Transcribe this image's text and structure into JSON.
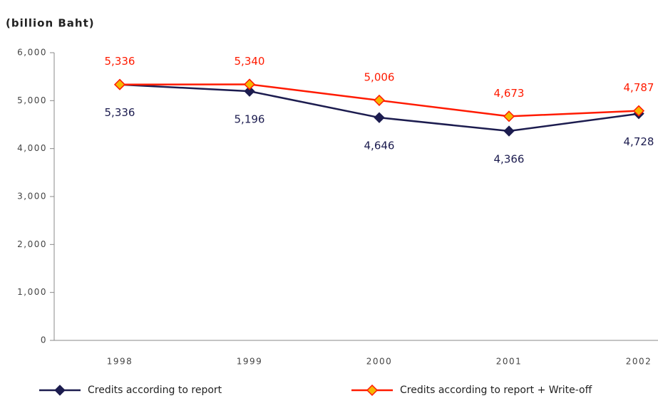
{
  "chart_data": {
    "type": "line",
    "ylabel": "(billion Baht)",
    "categories": [
      "1998",
      "1999",
      "2000",
      "2001",
      "2002"
    ],
    "series": [
      {
        "name": "Credits according to report",
        "color": "#1c1c4f",
        "marker_color": "#1c1c4f",
        "values": [
          5336,
          5196,
          4646,
          4366,
          4728
        ],
        "value_labels": [
          "5,336",
          "5,196",
          "4,646",
          "4,366",
          "4,728"
        ]
      },
      {
        "name": "Credits according to report + Write-off",
        "color": "#ff1a00",
        "marker_color": "#f5b800",
        "values": [
          5336,
          5340,
          5006,
          4673,
          4787
        ],
        "value_labels": [
          "5,336",
          "5,340",
          "5,006",
          "4,673",
          "4,787"
        ]
      }
    ],
    "ylim": [
      0,
      6000
    ],
    "yticks": [
      0,
      {
        "value": 1000,
        "label": "1,000"
      },
      {
        "value": 2000,
        "label": "2,000"
      },
      {
        "value": 3000,
        "label": "3,000"
      },
      {
        "value": 4000,
        "label": "4,000"
      },
      {
        "value": 5000,
        "label": "5,000"
      },
      {
        "value": 6000,
        "label": "6,000"
      }
    ]
  }
}
